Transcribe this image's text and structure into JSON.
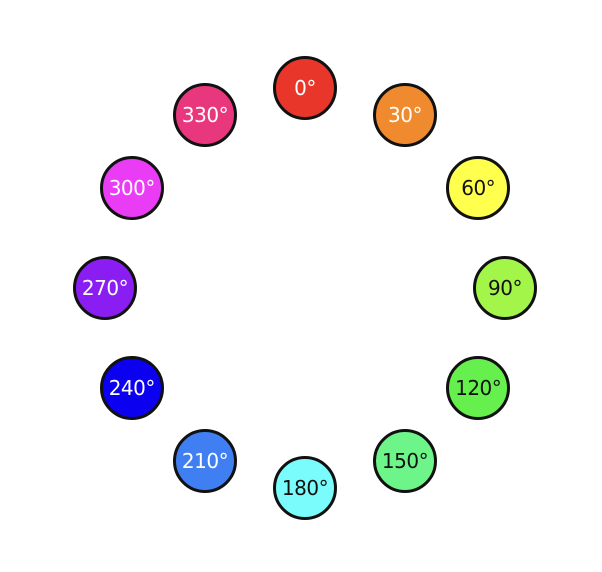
{
  "swatches": [
    {
      "label": "0°",
      "hue": 0,
      "color": "#e8372a",
      "text_color": "#ffffff"
    },
    {
      "label": "30°",
      "hue": 30,
      "color": "#f08a2e",
      "text_color": "#ffffff"
    },
    {
      "label": "60°",
      "hue": 60,
      "color": "#ffff4d",
      "text_color": "#111111"
    },
    {
      "label": "90°",
      "hue": 90,
      "color": "#a3f54a",
      "text_color": "#111111"
    },
    {
      "label": "120°",
      "hue": 120,
      "color": "#66f04d",
      "text_color": "#111111"
    },
    {
      "label": "150°",
      "hue": 150,
      "color": "#6ef58a",
      "text_color": "#111111"
    },
    {
      "label": "180°",
      "hue": 180,
      "color": "#7afcfc",
      "text_color": "#111111"
    },
    {
      "label": "210°",
      "hue": 210,
      "color": "#3f7ff2",
      "text_color": "#ffffff"
    },
    {
      "label": "240°",
      "hue": 240,
      "color": "#0b00f0",
      "text_color": "#ffffff"
    },
    {
      "label": "270°",
      "hue": 270,
      "color": "#8a1ef2",
      "text_color": "#ffffff"
    },
    {
      "label": "300°",
      "hue": 300,
      "color": "#ea3cf5",
      "text_color": "#ffffff"
    },
    {
      "label": "330°",
      "hue": 330,
      "color": "#e8377d",
      "text_color": "#ffffff"
    }
  ]
}
